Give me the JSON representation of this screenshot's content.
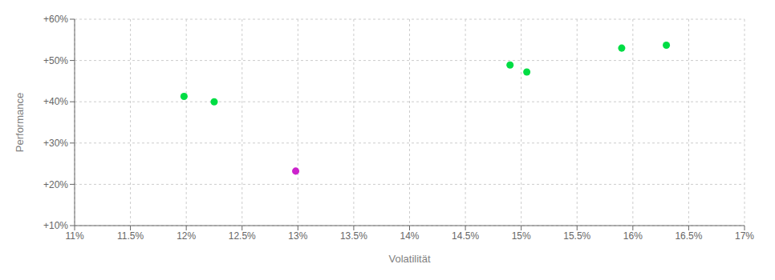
{
  "chart_data": {
    "type": "scatter",
    "xlabel": "Volatilität",
    "ylabel": "Performance",
    "xlim": [
      0.11,
      0.17
    ],
    "ylim": [
      0.1,
      0.6
    ],
    "xticks": [
      {
        "value": 0.11,
        "label": "11%"
      },
      {
        "value": 0.115,
        "label": "11.5%"
      },
      {
        "value": 0.12,
        "label": "12%"
      },
      {
        "value": 0.125,
        "label": "12.5%"
      },
      {
        "value": 0.13,
        "label": "13%"
      },
      {
        "value": 0.135,
        "label": "13.5%"
      },
      {
        "value": 0.14,
        "label": "14%"
      },
      {
        "value": 0.145,
        "label": "14.5%"
      },
      {
        "value": 0.15,
        "label": "15%"
      },
      {
        "value": 0.155,
        "label": "15.5%"
      },
      {
        "value": 0.16,
        "label": "16%"
      },
      {
        "value": 0.165,
        "label": "16.5%"
      },
      {
        "value": 0.17,
        "label": "17%"
      }
    ],
    "yticks": [
      {
        "value": 0.1,
        "label": "+10%"
      },
      {
        "value": 0.2,
        "label": "+20%"
      },
      {
        "value": 0.3,
        "label": "+30%"
      },
      {
        "value": 0.4,
        "label": "+40%"
      },
      {
        "value": 0.5,
        "label": "+50%"
      },
      {
        "value": 0.6,
        "label": "+60%"
      }
    ],
    "grid": true,
    "series": [
      {
        "color": "#00dd44",
        "x": [
          0.1198,
          0.1225,
          0.149,
          0.1505,
          0.159,
          0.163
        ],
        "values": [
          0.413,
          0.4,
          0.489,
          0.472,
          0.53,
          0.537
        ]
      },
      {
        "color": "#cc22cc",
        "x": [
          0.1298
        ],
        "values": [
          0.232
        ]
      }
    ]
  }
}
